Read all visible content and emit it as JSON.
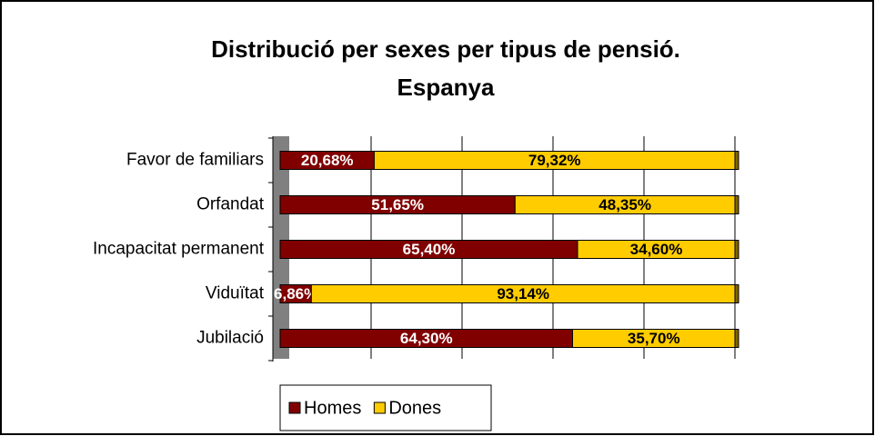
{
  "chart_data": {
    "type": "stacked_barh",
    "title": [
      "Distribució per sexes per tipus de pensió.",
      "Espanya"
    ],
    "categories": [
      "Favor de familiars",
      "Orfandat",
      "Incapacitat permanent",
      "Viduïtat",
      "Jubilació"
    ],
    "series": [
      {
        "name": "Homes",
        "color": "#800000",
        "label_color": "#ffffff",
        "values": [
          20.68,
          51.65,
          65.4,
          6.86,
          64.3
        ],
        "value_labels": [
          "20,68%",
          "51,65%",
          "65,40%",
          "6,86%",
          "64,30%"
        ]
      },
      {
        "name": "Dones",
        "color": "#ffcc00",
        "label_color": "#000000",
        "values": [
          79.32,
          48.35,
          34.6,
          93.14,
          35.7
        ],
        "value_labels": [
          "79,32%",
          "48,35%",
          "34,60%",
          "93,14%",
          "35,70%"
        ]
      }
    ],
    "xlim": [
      0,
      100
    ],
    "xticks": [
      0,
      20,
      40,
      60,
      80,
      100
    ],
    "grid": true
  }
}
